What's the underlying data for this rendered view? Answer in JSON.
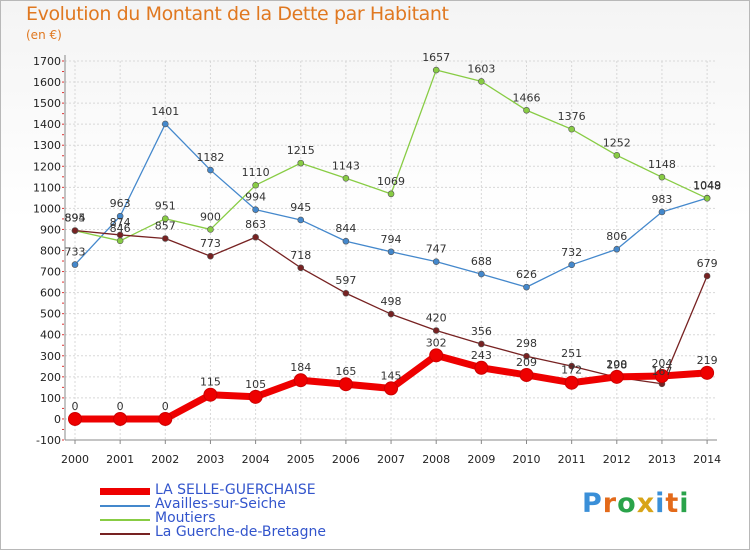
{
  "title": "Evolution du Montant de la Dette par Habitant",
  "unit": "(en €)",
  "logo": {
    "text": "Proxiti",
    "colors": [
      "#3a8fd8",
      "#e36a1a",
      "#2aa34a",
      "#d8a418",
      "#3a8fd8",
      "#e36a1a",
      "#2aa34a"
    ]
  },
  "chart_data": {
    "type": "line",
    "x": [
      "2000",
      "2001",
      "2002",
      "2003",
      "2004",
      "2005",
      "2006",
      "2007",
      "2008",
      "2009",
      "2010",
      "2011",
      "2012",
      "2013",
      "2014"
    ],
    "ylim": [
      -100,
      1700
    ],
    "yticks": [
      -100,
      0,
      100,
      200,
      300,
      400,
      500,
      600,
      700,
      800,
      900,
      1000,
      1100,
      1200,
      1300,
      1400,
      1500,
      1600,
      1700
    ],
    "grid": true,
    "legend": "bottom-left",
    "series": [
      {
        "name": "LA SELLE-GUERCHAISE",
        "color": "#ee0000",
        "values": [
          0,
          0,
          0,
          115,
          105,
          184,
          165,
          145,
          302,
          243,
          209,
          172,
          200,
          204,
          219
        ]
      },
      {
        "name": "Availles-sur-Seiche",
        "color": "#4488cc",
        "values": [
          733,
          963,
          1401,
          1182,
          994,
          945,
          844,
          794,
          747,
          688,
          626,
          732,
          806,
          983,
          1049
        ]
      },
      {
        "name": "Moutiers",
        "color": "#88cc44",
        "values": [
          894,
          846,
          951,
          900,
          1110,
          1215,
          1143,
          1069,
          1657,
          1603,
          1466,
          1376,
          1252,
          1148,
          1048
        ]
      },
      {
        "name": "La Guerche-de-Bretagne",
        "color": "#772222",
        "values": [
          895,
          874,
          857,
          773,
          863,
          718,
          597,
          498,
          420,
          356,
          298,
          251,
          198,
          167,
          679
        ]
      }
    ]
  }
}
